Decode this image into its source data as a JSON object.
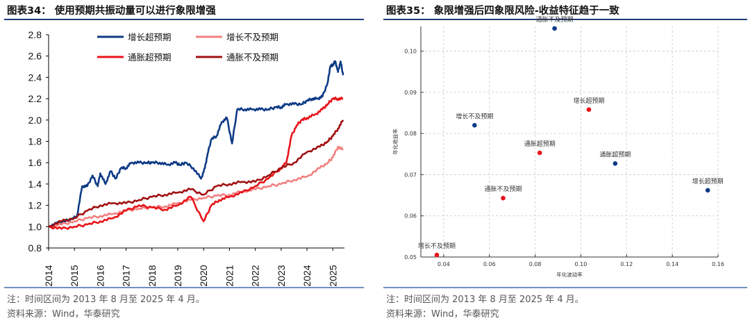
{
  "left_panel": {
    "title": "图表34：  使用预期共振动量可以进行象限增强",
    "note": "注：时间区间为 2013 年 8 月至 2025 年 4 月。",
    "source": "资料来源：Wind，华泰研究"
  },
  "right_panel": {
    "title": "图表35：  象限增强后四象限风险-收益特征趋于一致",
    "note": "注：时间区间为 2013 年 8 月至 2025 年 4 月。",
    "source": "资料来源：Wind，华泰研究"
  },
  "chart_data": [
    {
      "type": "line",
      "title": "使用预期共振动量可以进行象限增强",
      "xlabel": "",
      "ylabel": "",
      "x_ticks": [
        "2014",
        "2015",
        "2016",
        "2017",
        "2018",
        "2019",
        "2020",
        "2021",
        "2022",
        "2023",
        "2024",
        "2025"
      ],
      "xlim": [
        2014.0,
        2025.45
      ],
      "ylim": [
        0.8,
        2.8
      ],
      "y_ticks": [
        "0.8",
        "1.0",
        "1.2",
        "1.4",
        "1.6",
        "1.8",
        "2.0",
        "2.2",
        "2.4",
        "2.6",
        "2.8"
      ],
      "legend_position": "top",
      "series": [
        {
          "name": "增长超预期",
          "color": "#0d3a85",
          "x": [
            2014.0,
            2014.3,
            2014.6,
            2014.9,
            2015.1,
            2015.3,
            2015.5,
            2015.7,
            2015.9,
            2016.0,
            2016.2,
            2016.4,
            2016.6,
            2016.8,
            2017.0,
            2017.2,
            2017.5,
            2017.8,
            2018.0,
            2018.3,
            2018.6,
            2018.9,
            2019.1,
            2019.3,
            2019.6,
            2019.9,
            2020.05,
            2020.15,
            2020.3,
            2020.5,
            2020.7,
            2020.9,
            2021.1,
            2021.3,
            2021.6,
            2021.9,
            2022.2,
            2022.5,
            2022.8,
            2023.0,
            2023.2,
            2023.5,
            2023.8,
            2024.0,
            2024.2,
            2024.4,
            2024.6,
            2024.8,
            2024.9,
            2025.0,
            2025.1,
            2025.2,
            2025.3,
            2025.4
          ],
          "values": [
            1.0,
            1.03,
            1.05,
            1.07,
            1.1,
            1.38,
            1.38,
            1.48,
            1.38,
            1.5,
            1.4,
            1.52,
            1.45,
            1.55,
            1.55,
            1.6,
            1.6,
            1.6,
            1.6,
            1.6,
            1.58,
            1.6,
            1.58,
            1.6,
            1.55,
            1.45,
            1.55,
            1.68,
            1.82,
            1.85,
            1.98,
            2.02,
            1.78,
            2.1,
            2.1,
            2.1,
            2.1,
            2.1,
            2.12,
            2.12,
            2.15,
            2.15,
            2.15,
            2.18,
            2.2,
            2.2,
            2.22,
            2.35,
            2.5,
            2.52,
            2.55,
            2.45,
            2.55,
            2.42
          ]
        },
        {
          "name": "增长不及预期",
          "color": "#f28080",
          "x": [
            2014.0,
            2014.5,
            2015.0,
            2015.5,
            2016.0,
            2016.5,
            2017.0,
            2017.5,
            2018.0,
            2018.5,
            2019.0,
            2019.5,
            2020.0,
            2020.5,
            2021.0,
            2021.5,
            2022.0,
            2022.5,
            2023.0,
            2023.5,
            2024.0,
            2024.5,
            2024.8,
            2025.0,
            2025.2,
            2025.4
          ],
          "values": [
            1.0,
            1.02,
            1.05,
            1.08,
            1.1,
            1.12,
            1.15,
            1.17,
            1.18,
            1.19,
            1.22,
            1.25,
            1.27,
            1.29,
            1.3,
            1.33,
            1.35,
            1.38,
            1.4,
            1.44,
            1.47,
            1.55,
            1.6,
            1.65,
            1.75,
            1.72
          ]
        },
        {
          "name": "通胀超预期",
          "color": "#e8141a",
          "x": [
            2014.0,
            2014.5,
            2015.0,
            2015.5,
            2016.0,
            2016.5,
            2017.0,
            2017.5,
            2018.0,
            2018.5,
            2019.0,
            2019.5,
            2020.0,
            2020.3,
            2020.6,
            2021.0,
            2021.5,
            2022.0,
            2022.5,
            2023.0,
            2023.2,
            2023.4,
            2023.6,
            2023.8,
            2024.0,
            2024.3,
            2024.6,
            2024.8,
            2025.0,
            2025.2,
            2025.4
          ],
          "values": [
            1.0,
            0.98,
            1.0,
            1.02,
            1.05,
            1.08,
            1.15,
            1.2,
            1.18,
            1.16,
            1.2,
            1.28,
            1.05,
            1.2,
            1.25,
            1.28,
            1.32,
            1.38,
            1.45,
            1.55,
            1.6,
            1.85,
            1.95,
            2.0,
            2.02,
            2.05,
            2.1,
            2.15,
            2.2,
            2.2,
            2.2
          ]
        },
        {
          "name": "通胀不及预期",
          "color": "#a01010",
          "x": [
            2014.0,
            2014.5,
            2015.0,
            2015.5,
            2016.0,
            2016.5,
            2017.0,
            2017.5,
            2018.0,
            2018.5,
            2019.0,
            2019.5,
            2020.0,
            2020.5,
            2021.0,
            2021.5,
            2022.0,
            2022.5,
            2023.0,
            2023.5,
            2024.0,
            2024.5,
            2024.8,
            2025.0,
            2025.2,
            2025.4
          ],
          "values": [
            1.0,
            1.05,
            1.08,
            1.15,
            1.2,
            1.22,
            1.22,
            1.25,
            1.28,
            1.3,
            1.32,
            1.35,
            1.3,
            1.38,
            1.4,
            1.42,
            1.42,
            1.48,
            1.55,
            1.6,
            1.7,
            1.75,
            1.8,
            1.85,
            1.92,
            2.0
          ]
        }
      ]
    },
    {
      "type": "scatter",
      "title": "象限增强后四象限风险-收益特征趋于一致",
      "xlabel": "年化波动率",
      "ylabel": "年化收益率",
      "xlim": [
        0.03,
        0.16
      ],
      "ylim": [
        0.05,
        0.106
      ],
      "x_ticks": [
        "0.04",
        "0.06",
        "0.08",
        "0.10",
        "0.12",
        "0.14",
        "0.16"
      ],
      "y_ticks": [
        "0.05",
        "0.06",
        "0.07",
        "0.08",
        "0.09",
        "0.10"
      ],
      "grid": true,
      "points": [
        {
          "label": "通胀不及预期",
          "x": 0.0885,
          "y": 0.1055,
          "color": "#0d3a85",
          "label_color": "#1f4e9a"
        },
        {
          "label": "增长超预期",
          "x": 0.1035,
          "y": 0.0858,
          "color": "#e8141a",
          "label_color": "#e8141a"
        },
        {
          "label": "增长不及预期",
          "x": 0.0535,
          "y": 0.082,
          "color": "#0d3a85",
          "label_color": "#1f4e9a"
        },
        {
          "label": "通胀超预期",
          "x": 0.082,
          "y": 0.0753,
          "color": "#e8141a",
          "label_color": "#e8141a"
        },
        {
          "label": "通胀超预期",
          "x": 0.115,
          "y": 0.0727,
          "color": "#0d3a85",
          "label_color": "#1f4e9a"
        },
        {
          "label": "增长超预期",
          "x": 0.1555,
          "y": 0.0662,
          "color": "#0d3a85",
          "label_color": "#1f4e9a"
        },
        {
          "label": "通胀不及预期",
          "x": 0.066,
          "y": 0.0643,
          "color": "#e8141a",
          "label_color": "#e8141a"
        },
        {
          "label": "增长不及预期",
          "x": 0.037,
          "y": 0.0505,
          "color": "#e8141a",
          "label_color": "#e8141a"
        }
      ]
    }
  ]
}
